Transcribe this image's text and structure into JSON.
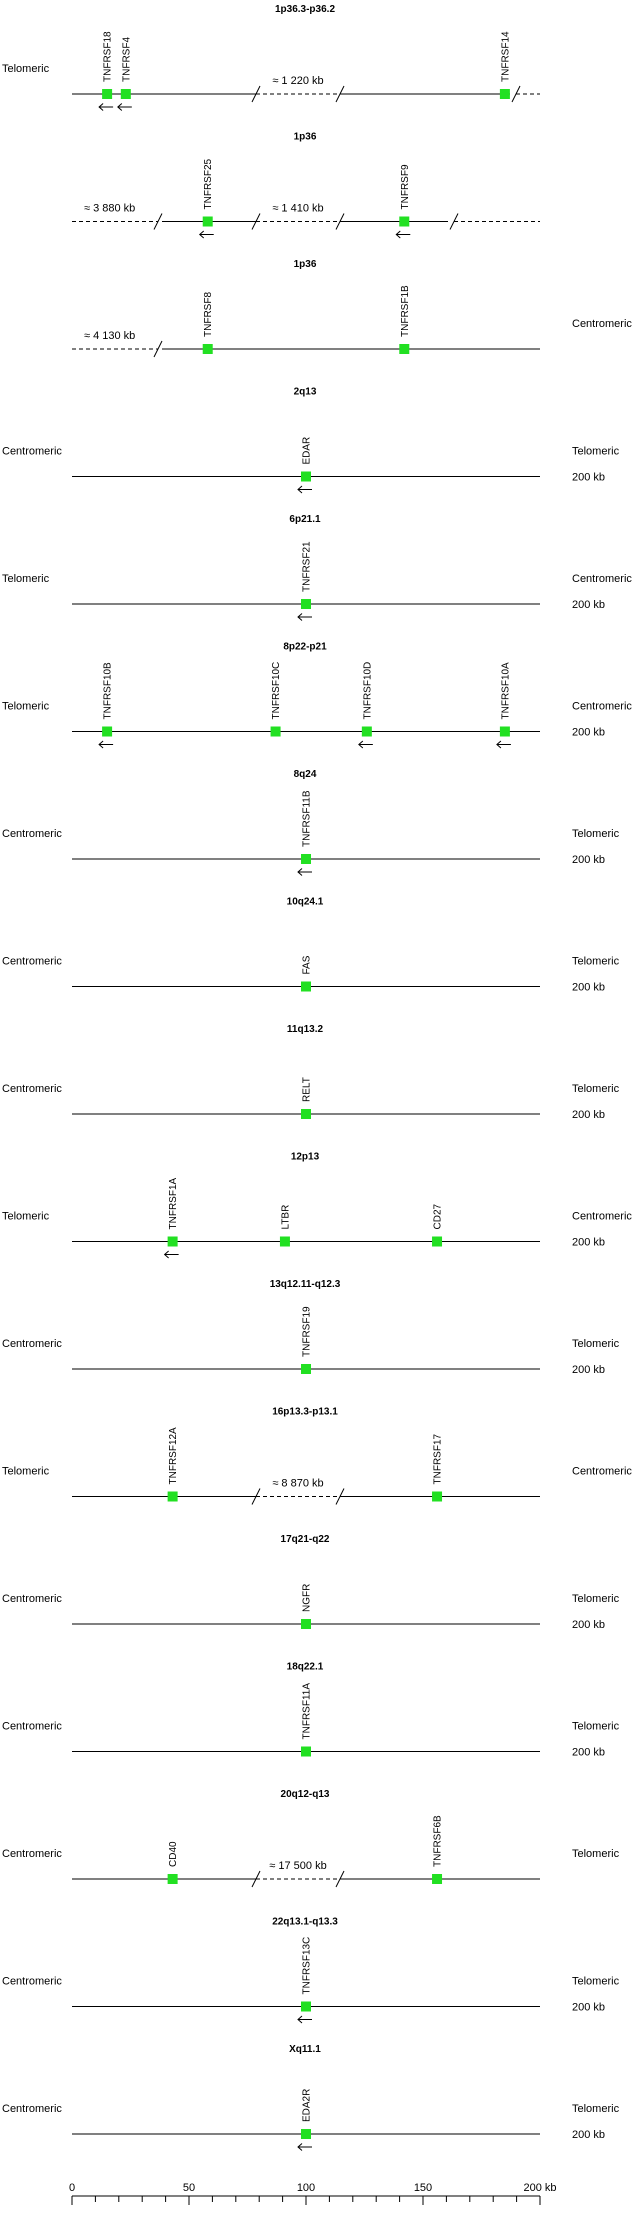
{
  "colors": {
    "gene": "#22e022",
    "line": "#000000"
  },
  "tracks": [
    {
      "title": "1p36.3-p36.2",
      "left": "Telomeric",
      "right": "",
      "scale": "",
      "dashLeft": false,
      "dashRight": true,
      "gapText": "≈ 1 220 kb",
      "genes": [
        {
          "name": "TNFRSF18",
          "pos": 15,
          "arrow": "left"
        },
        {
          "name": "TNFRSF4",
          "pos": 23,
          "arrow": "left"
        },
        {
          "name": "TNFRSF14",
          "pos": 185,
          "arrow": ""
        }
      ]
    },
    {
      "title": "1p36",
      "left": "",
      "right": "",
      "scale": "",
      "dashLeft": true,
      "dashRight": true,
      "gapText": "≈ 1 410 kb",
      "leftGapText": "≈ 3 880 kb",
      "genes": [
        {
          "name": "TNFRSF25",
          "pos": 58,
          "arrow": "left"
        },
        {
          "name": "TNFRSF9",
          "pos": 142,
          "arrow": "left"
        }
      ]
    },
    {
      "title": "1p36",
      "left": "",
      "right": "Centromeric",
      "scale": "",
      "dashLeft": true,
      "dashRight": false,
      "gapText": "",
      "leftGapText": "≈ 4 130 kb",
      "genes": [
        {
          "name": "TNFRSF8",
          "pos": 58,
          "arrow": ""
        },
        {
          "name": "TNFRSF1B",
          "pos": 142,
          "arrow": ""
        }
      ]
    },
    {
      "title": "2q13",
      "left": "Centromeric",
      "right": "Telomeric",
      "scale": "200 kb",
      "genes": [
        {
          "name": "EDAR",
          "pos": 100,
          "arrow": "left"
        }
      ]
    },
    {
      "title": "6p21.1",
      "left": "Telomeric",
      "right": "Centromeric",
      "scale": "200 kb",
      "genes": [
        {
          "name": "TNFRSF21",
          "pos": 100,
          "arrow": "left"
        }
      ]
    },
    {
      "title": "8p22-p21",
      "left": "Telomeric",
      "right": "Centromeric",
      "scale": "200 kb",
      "genes": [
        {
          "name": "TNFRSF10B",
          "pos": 15,
          "arrow": "left"
        },
        {
          "name": "TNFRSF10C",
          "pos": 87,
          "arrow": ""
        },
        {
          "name": "TNFRSF10D",
          "pos": 126,
          "arrow": "left"
        },
        {
          "name": "TNFRSF10A",
          "pos": 185,
          "arrow": "left"
        }
      ]
    },
    {
      "title": "8q24",
      "left": "Centromeric",
      "right": "Telomeric",
      "scale": "200 kb",
      "genes": [
        {
          "name": "TNFRSF11B",
          "pos": 100,
          "arrow": "left"
        }
      ]
    },
    {
      "title": "10q24.1",
      "left": "Centromeric",
      "right": "Telomeric",
      "scale": "200 kb",
      "genes": [
        {
          "name": "FAS",
          "pos": 100,
          "arrow": ""
        }
      ]
    },
    {
      "title": "11q13.2",
      "left": "Centromeric",
      "right": "Telomeric",
      "scale": "200 kb",
      "genes": [
        {
          "name": "RELT",
          "pos": 100,
          "arrow": ""
        }
      ]
    },
    {
      "title": "12p13",
      "left": "Telomeric",
      "right": "Centromeric",
      "scale": "200 kb",
      "genes": [
        {
          "name": "TNFRSF1A",
          "pos": 43,
          "arrow": "left"
        },
        {
          "name": "LTBR",
          "pos": 91,
          "arrow": ""
        },
        {
          "name": "CD27",
          "pos": 156,
          "arrow": ""
        }
      ]
    },
    {
      "title": "13q12.11-q12.3",
      "left": "Centromeric",
      "right": "Telomeric",
      "scale": "200 kb",
      "genes": [
        {
          "name": "TNFRSF19",
          "pos": 100,
          "arrow": ""
        }
      ]
    },
    {
      "title": "16p13.3-p13.1",
      "left": "Telomeric",
      "right": "Centromeric",
      "scale": "",
      "gapText": "≈ 8 870 kb",
      "genes": [
        {
          "name": "TNFRSF12A",
          "pos": 43,
          "arrow": ""
        },
        {
          "name": "TNFRSF17",
          "pos": 156,
          "arrow": ""
        }
      ]
    },
    {
      "title": "17q21-q22",
      "left": "Centromeric",
      "right": "Telomeric",
      "scale": "200 kb",
      "genes": [
        {
          "name": "NGFR",
          "pos": 100,
          "arrow": ""
        }
      ]
    },
    {
      "title": "18q22.1",
      "left": "Centromeric",
      "right": "Telomeric",
      "scale": "200 kb",
      "genes": [
        {
          "name": "TNFRSF11A",
          "pos": 100,
          "arrow": ""
        }
      ]
    },
    {
      "title": "20q12-q13",
      "left": "Centromeric",
      "right": "Telomeric",
      "scale": "",
      "gapText": "≈ 17 500 kb",
      "genes": [
        {
          "name": "CD40",
          "pos": 43,
          "arrow": ""
        },
        {
          "name": "TNFRSF6B",
          "pos": 156,
          "arrow": ""
        }
      ]
    },
    {
      "title": "22q13.1-q13.3",
      "left": "Centromeric",
      "right": "Telomeric",
      "scale": "200 kb",
      "genes": [
        {
          "name": "TNFRSF13C",
          "pos": 100,
          "arrow": "left"
        }
      ]
    },
    {
      "title": "Xq11.1",
      "left": "Centromeric",
      "right": "Telomeric",
      "scale": "200 kb",
      "genes": [
        {
          "name": "EDA2R",
          "pos": 100,
          "arrow": "left"
        }
      ]
    }
  ],
  "axis": {
    "ticks": [
      0,
      50,
      100,
      150
    ],
    "endLabel": "200 kb",
    "max": 200,
    "minor": 10
  }
}
